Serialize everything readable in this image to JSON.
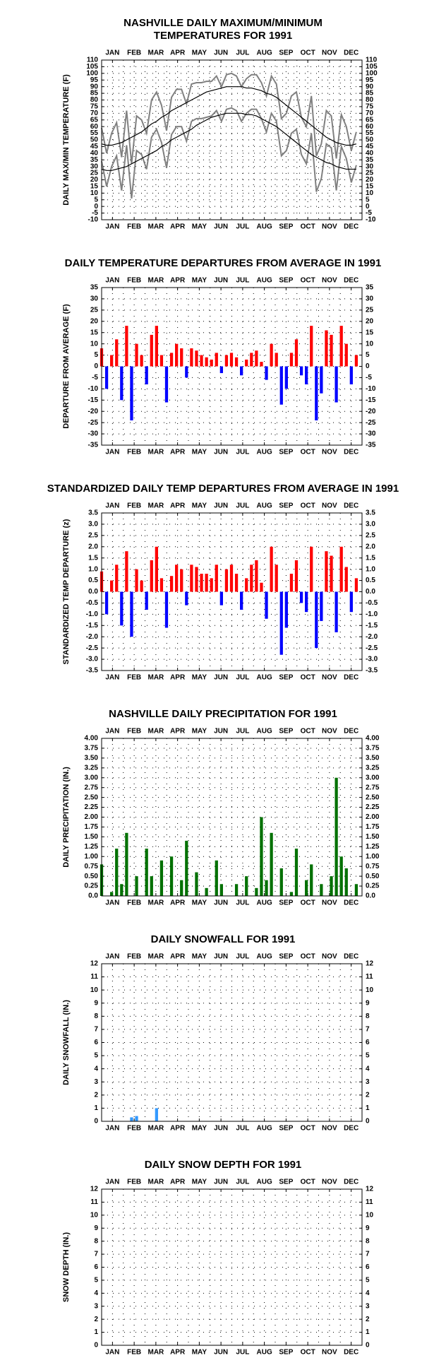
{
  "chart_data": [
    {
      "type": "line",
      "title": [
        "NASHVILLE DAILY MAXIMUM/MINIMUM",
        "TEMPERATURES FOR 1991"
      ],
      "ylabel": "DAILY MAX/MIN TEMPERATURE (F)",
      "month_labels": [
        "JAN",
        "FEB",
        "MAR",
        "APR",
        "MAY",
        "JUN",
        "JUL",
        "AUG",
        "SEP",
        "OCT",
        "NOV",
        "DEC"
      ],
      "x": [
        1,
        8,
        15,
        22,
        29,
        36,
        43,
        50,
        57,
        64,
        71,
        78,
        85,
        92,
        99,
        106,
        113,
        120,
        127,
        134,
        141,
        148,
        155,
        162,
        169,
        176,
        183,
        190,
        197,
        204,
        211,
        218,
        225,
        232,
        239,
        246,
        253,
        260,
        267,
        274,
        281,
        288,
        295,
        302,
        309,
        316,
        323,
        330,
        337,
        344,
        351,
        358
      ],
      "xlim": [
        1,
        366
      ],
      "ylim": [
        -10,
        110
      ],
      "yticks": [
        -10,
        -5,
        0,
        5,
        10,
        15,
        20,
        25,
        30,
        35,
        40,
        45,
        50,
        55,
        60,
        65,
        70,
        75,
        80,
        85,
        90,
        95,
        100,
        105,
        110
      ],
      "grid": true,
      "series": [
        {
          "color": "#808080",
          "values": [
            59,
            40,
            55,
            63,
            37,
            72,
            32,
            68,
            65,
            55,
            80,
            86,
            76,
            57,
            82,
            88,
            88,
            77,
            92,
            93,
            93,
            94,
            94,
            98,
            90,
            99,
            100,
            98,
            90,
            96,
            99,
            99,
            93,
            83,
            98,
            92,
            66,
            70,
            83,
            86,
            67,
            60,
            83,
            38,
            47,
            72,
            68,
            36,
            69,
            60,
            42,
            56
          ]
        },
        {
          "color": "#808080",
          "values": [
            34,
            15,
            30,
            38,
            12,
            46,
            6,
            42,
            39,
            28,
            52,
            58,
            48,
            29,
            54,
            60,
            60,
            49,
            64,
            66,
            66,
            67,
            68,
            72,
            64,
            73,
            74,
            72,
            64,
            70,
            73,
            73,
            66,
            56,
            70,
            64,
            38,
            42,
            55,
            58,
            39,
            32,
            55,
            11,
            21,
            47,
            44,
            12,
            45,
            36,
            18,
            31
          ]
        },
        {
          "color": "#000000",
          "values": [
            47,
            46,
            46,
            47,
            48,
            50,
            52,
            54,
            56,
            59,
            62,
            64,
            67,
            69,
            72,
            74,
            76,
            78,
            80,
            82,
            84,
            86,
            87,
            88,
            89,
            90,
            90,
            90,
            90,
            89,
            89,
            88,
            87,
            85,
            84,
            82,
            79,
            76,
            73,
            70,
            67,
            64,
            61,
            58,
            55,
            52,
            50,
            48,
            47,
            46,
            46,
            47
          ]
        },
        {
          "color": "#000000",
          "values": [
            28,
            27,
            27,
            28,
            29,
            30,
            32,
            34,
            36,
            38,
            40,
            42,
            45,
            47,
            50,
            52,
            54,
            56,
            58,
            61,
            63,
            65,
            67,
            68,
            69,
            70,
            70,
            70,
            70,
            69,
            69,
            68,
            66,
            64,
            62,
            60,
            57,
            54,
            51,
            48,
            45,
            42,
            39,
            37,
            35,
            33,
            32,
            30,
            29,
            28,
            28,
            28
          ]
        }
      ]
    },
    {
      "type": "bar",
      "title": [
        "DAILY TEMPERATURE DEPARTURES FROM AVERAGE IN 1991"
      ],
      "ylabel": "DEPARTURE FROM AVERAGE (F)",
      "month_labels": [
        "JAN",
        "FEB",
        "MAR",
        "APR",
        "MAY",
        "JUN",
        "JUL",
        "AUG",
        "SEP",
        "OCT",
        "NOV",
        "DEC"
      ],
      "x": [
        1,
        8,
        15,
        22,
        29,
        36,
        43,
        50,
        57,
        64,
        71,
        78,
        85,
        92,
        99,
        106,
        113,
        120,
        127,
        134,
        141,
        148,
        155,
        162,
        169,
        176,
        183,
        190,
        197,
        204,
        211,
        218,
        225,
        232,
        239,
        246,
        253,
        260,
        267,
        274,
        281,
        288,
        295,
        302,
        309,
        316,
        323,
        330,
        337,
        344,
        351,
        358
      ],
      "xlim": [
        1,
        366
      ],
      "ylim": [
        -35,
        35
      ],
      "yticks": [
        -35,
        -30,
        -25,
        -20,
        -15,
        -10,
        -5,
        0,
        5,
        10,
        15,
        20,
        25,
        30,
        35
      ],
      "grid": true,
      "positive_color": "#ff0000",
      "negative_color": "#0000ff",
      "values": [
        8,
        -10,
        5,
        12,
        -15,
        18,
        -24,
        10,
        5,
        -8,
        14,
        18,
        5,
        -16,
        6,
        10,
        8,
        -5,
        8,
        7,
        5,
        4,
        3,
        6,
        -3,
        5,
        6,
        4,
        -4,
        3,
        6,
        7,
        2,
        -6,
        10,
        6,
        -17,
        -10,
        6,
        12,
        -4,
        -8,
        18,
        -24,
        -12,
        16,
        14,
        -16,
        18,
        10,
        -8,
        5
      ]
    },
    {
      "type": "bar",
      "title": [
        "STANDARDIZED DAILY TEMP DEPARTURES FROM AVERAGE IN 1991"
      ],
      "ylabel": "STANDARDIZED TEMP DEPARTURE (z)",
      "month_labels": [
        "JAN",
        "FEB",
        "MAR",
        "APR",
        "MAY",
        "JUN",
        "JUL",
        "AUG",
        "SEP",
        "OCT",
        "NOV",
        "DEC"
      ],
      "x": [
        1,
        8,
        15,
        22,
        29,
        36,
        43,
        50,
        57,
        64,
        71,
        78,
        85,
        92,
        99,
        106,
        113,
        120,
        127,
        134,
        141,
        148,
        155,
        162,
        169,
        176,
        183,
        190,
        197,
        204,
        211,
        218,
        225,
        232,
        239,
        246,
        253,
        260,
        267,
        274,
        281,
        288,
        295,
        302,
        309,
        316,
        323,
        330,
        337,
        344,
        351,
        358
      ],
      "xlim": [
        1,
        366
      ],
      "ylim": [
        -3.5,
        3.5
      ],
      "yticks": [
        -3.5,
        {
          "value": -3,
          "label": "-3.0"
        },
        -2.5,
        {
          "value": -2,
          "label": "-2.0"
        },
        -1.5,
        {
          "value": -1,
          "label": "-1.0"
        },
        -0.5,
        {
          "value": 0,
          "label": "0.0"
        },
        0.5,
        {
          "value": 1,
          "label": "1.0"
        },
        1.5,
        {
          "value": 2,
          "label": "2.0"
        },
        2.5,
        {
          "value": 3,
          "label": "3.0"
        },
        3.5
      ],
      "grid": true,
      "positive_color": "#ff0000",
      "negative_color": "#0000ff",
      "values": [
        0.9,
        -1.0,
        0.5,
        1.2,
        -1.5,
        1.8,
        -2.0,
        1.0,
        0.5,
        -0.8,
        1.4,
        2.0,
        0.6,
        -1.6,
        0.7,
        1.2,
        1.0,
        -0.6,
        1.2,
        1.1,
        0.8,
        0.8,
        0.6,
        1.2,
        -0.6,
        1.0,
        1.2,
        0.8,
        -0.8,
        0.6,
        1.2,
        1.4,
        0.4,
        -1.2,
        2.0,
        1.2,
        -2.8,
        -1.6,
        0.8,
        1.4,
        -0.5,
        -0.9,
        2.0,
        -2.5,
        -1.3,
        1.8,
        1.6,
        -1.8,
        2.0,
        1.1,
        -0.9,
        0.6
      ]
    },
    {
      "type": "bar",
      "title": [
        "NASHVILLE DAILY PRECIPITATION FOR 1991"
      ],
      "ylabel": "DAILY PRECIPITATION (IN.)",
      "month_labels": [
        "JAN",
        "FEB",
        "MAR",
        "APR",
        "MAY",
        "JUN",
        "JUL",
        "AUG",
        "SEP",
        "OCT",
        "NOV",
        "DEC"
      ],
      "x": [
        1,
        8,
        15,
        22,
        29,
        36,
        43,
        50,
        57,
        64,
        71,
        78,
        85,
        92,
        99,
        106,
        113,
        120,
        127,
        134,
        141,
        148,
        155,
        162,
        169,
        176,
        183,
        190,
        197,
        204,
        211,
        218,
        225,
        232,
        239,
        246,
        253,
        260,
        267,
        274,
        281,
        288,
        295,
        302,
        309,
        316,
        323,
        330,
        337,
        344,
        351,
        358
      ],
      "xlim": [
        1,
        366
      ],
      "ylim": [
        0,
        4
      ],
      "yticks": [
        {
          "value": 0,
          "label": "0.0"
        },
        0.25,
        {
          "value": 0.5,
          "label": "0.50"
        },
        0.75,
        {
          "value": 1,
          "label": "1.00"
        },
        1.25,
        {
          "value": 1.5,
          "label": "1.50"
        },
        1.75,
        {
          "value": 2,
          "label": "2.00"
        },
        2.25,
        {
          "value": 2.5,
          "label": "2.50"
        },
        2.75,
        {
          "value": 3,
          "label": "3.00"
        },
        3.25,
        {
          "value": 3.5,
          "label": "3.50"
        },
        3.75,
        {
          "value": 4,
          "label": "4.00"
        }
      ],
      "grid": true,
      "color": "#007000",
      "values": [
        0.8,
        0,
        0.1,
        1.2,
        0.3,
        1.6,
        0,
        0.5,
        0,
        1.2,
        0.5,
        0,
        0.9,
        0,
        1.0,
        0,
        0.4,
        1.4,
        0,
        0.6,
        0,
        0.2,
        0,
        0.9,
        0.3,
        0,
        0,
        0.3,
        0,
        0.5,
        0,
        0.2,
        2.0,
        0.4,
        1.6,
        0,
        0.7,
        0,
        0.1,
        1.2,
        0,
        0.4,
        0.8,
        0,
        0.3,
        0,
        0.5,
        3.0,
        1.0,
        0.7,
        0,
        0.3
      ]
    },
    {
      "type": "bar",
      "title": [
        "DAILY SNOWFALL FOR 1991"
      ],
      "ylabel": "DAILY SNOWFALL (IN.)",
      "month_labels": [
        "JAN",
        "FEB",
        "MAR",
        "APR",
        "MAY",
        "JUN",
        "JUL",
        "AUG",
        "SEP",
        "OCT",
        "NOV",
        "DEC"
      ],
      "x": [
        1,
        8,
        15,
        22,
        29,
        36,
        43,
        50,
        57,
        64,
        71,
        78,
        85,
        92,
        99,
        106,
        113,
        120,
        127,
        134,
        141,
        148,
        155,
        162,
        169,
        176,
        183,
        190,
        197,
        204,
        211,
        218,
        225,
        232,
        239,
        246,
        253,
        260,
        267,
        274,
        281,
        288,
        295,
        302,
        309,
        316,
        323,
        330,
        337,
        344,
        351,
        358
      ],
      "xlim": [
        1,
        366
      ],
      "ylim": [
        0,
        12
      ],
      "yticks": [
        0,
        1,
        2,
        3,
        4,
        5,
        6,
        7,
        8,
        9,
        10,
        11,
        12
      ],
      "grid": true,
      "color": "#3399ff",
      "values": [
        0,
        0,
        0,
        0,
        0,
        0,
        0.3,
        0.4,
        0,
        0,
        0,
        1.0,
        0,
        0,
        0,
        0,
        0,
        0,
        0,
        0,
        0,
        0,
        0,
        0,
        0,
        0,
        0,
        0,
        0,
        0,
        0,
        0,
        0,
        0,
        0,
        0,
        0,
        0,
        0,
        0,
        0,
        0,
        0,
        0,
        0,
        0,
        0,
        0,
        0,
        0,
        0,
        0
      ]
    },
    {
      "type": "bar",
      "title": [
        "DAILY SNOW DEPTH FOR 1991"
      ],
      "ylabel": "SNOW DEPTH (IN.)",
      "month_labels": [
        "JAN",
        "FEB",
        "MAR",
        "APR",
        "MAY",
        "JUN",
        "JUL",
        "AUG",
        "SEP",
        "OCT",
        "NOV",
        "DEC"
      ],
      "x": [
        1,
        8,
        15,
        22,
        29,
        36,
        43,
        50,
        57,
        64,
        71,
        78,
        85,
        92,
        99,
        106,
        113,
        120,
        127,
        134,
        141,
        148,
        155,
        162,
        169,
        176,
        183,
        190,
        197,
        204,
        211,
        218,
        225,
        232,
        239,
        246,
        253,
        260,
        267,
        274,
        281,
        288,
        295,
        302,
        309,
        316,
        323,
        330,
        337,
        344,
        351,
        358
      ],
      "xlim": [
        1,
        366
      ],
      "ylim": [
        0,
        12
      ],
      "yticks": [
        0,
        1,
        2,
        3,
        4,
        5,
        6,
        7,
        8,
        9,
        10,
        11,
        12
      ],
      "grid": true,
      "color": "#3399ff",
      "values": [
        0,
        0,
        0,
        0,
        0,
        0,
        0,
        0,
        0,
        0,
        0,
        0,
        0,
        0,
        0,
        0,
        0,
        0,
        0,
        0,
        0,
        0,
        0,
        0,
        0,
        0,
        0,
        0,
        0,
        0,
        0,
        0,
        0,
        0,
        0,
        0,
        0,
        0,
        0,
        0,
        0,
        0,
        0,
        0,
        0,
        0,
        0,
        0,
        0,
        0,
        0,
        0
      ]
    }
  ]
}
